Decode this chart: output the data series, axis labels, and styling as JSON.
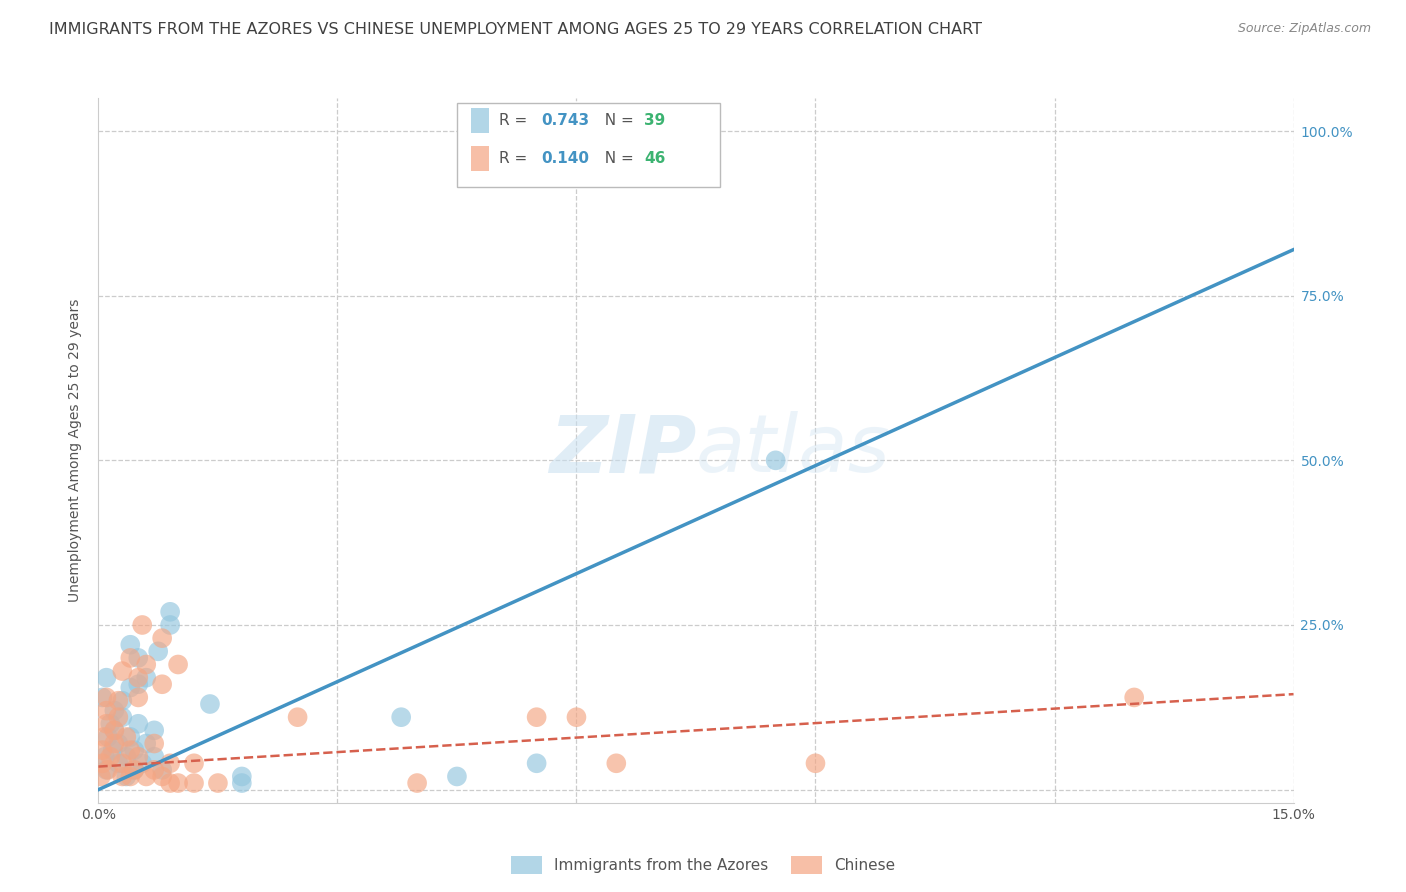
{
  "title": "IMMIGRANTS FROM THE AZORES VS CHINESE UNEMPLOYMENT AMONG AGES 25 TO 29 YEARS CORRELATION CHART",
  "source": "Source: ZipAtlas.com",
  "ylabel": "Unemployment Among Ages 25 to 29 years",
  "xlim": [
    0.0,
    0.15
  ],
  "ylim": [
    -0.02,
    1.05
  ],
  "xticks": [
    0.0,
    0.03,
    0.06,
    0.09,
    0.12,
    0.15
  ],
  "xticklabels": [
    "0.0%",
    "",
    "",
    "",
    "",
    "15.0%"
  ],
  "yticks": [
    0.0,
    0.25,
    0.5,
    0.75,
    1.0
  ],
  "right_yticklabels": [
    "",
    "25.0%",
    "50.0%",
    "75.0%",
    "100.0%"
  ],
  "watermark_zip": "ZIP",
  "watermark_atlas": "atlas",
  "legend_r1": "R = 0.743",
  "legend_n1": "N = 39",
  "legend_r2": "R = 0.140",
  "legend_n2": "N = 46",
  "azores_color": "#92c5de",
  "chinese_color": "#f4a582",
  "azores_line_color": "#4393c3",
  "chinese_line_color": "#d6604d",
  "azores_scatter": [
    [
      0.0005,
      0.14
    ],
    [
      0.001,
      0.17
    ],
    [
      0.0008,
      0.05
    ],
    [
      0.0012,
      0.08
    ],
    [
      0.0015,
      0.1
    ],
    [
      0.001,
      0.03
    ],
    [
      0.0018,
      0.06
    ],
    [
      0.002,
      0.09
    ],
    [
      0.002,
      0.12
    ],
    [
      0.0025,
      0.04
    ],
    [
      0.0025,
      0.07
    ],
    [
      0.003,
      0.11
    ],
    [
      0.003,
      0.135
    ],
    [
      0.0035,
      0.02
    ],
    [
      0.0035,
      0.05
    ],
    [
      0.004,
      0.08
    ],
    [
      0.004,
      0.155
    ],
    [
      0.004,
      0.22
    ],
    [
      0.0045,
      0.03
    ],
    [
      0.0045,
      0.06
    ],
    [
      0.005,
      0.1
    ],
    [
      0.005,
      0.16
    ],
    [
      0.005,
      0.2
    ],
    [
      0.0055,
      0.04
    ],
    [
      0.006,
      0.07
    ],
    [
      0.006,
      0.17
    ],
    [
      0.007,
      0.05
    ],
    [
      0.007,
      0.09
    ],
    [
      0.0075,
      0.21
    ],
    [
      0.008,
      0.03
    ],
    [
      0.009,
      0.25
    ],
    [
      0.009,
      0.27
    ],
    [
      0.014,
      0.13
    ],
    [
      0.018,
      0.02
    ],
    [
      0.018,
      0.01
    ],
    [
      0.038,
      0.11
    ],
    [
      0.045,
      0.02
    ],
    [
      0.055,
      0.04
    ],
    [
      0.085,
      0.5
    ]
  ],
  "chinese_scatter": [
    [
      0.0003,
      0.02
    ],
    [
      0.0005,
      0.04
    ],
    [
      0.0005,
      0.06
    ],
    [
      0.0007,
      0.08
    ],
    [
      0.001,
      0.1
    ],
    [
      0.001,
      0.12
    ],
    [
      0.001,
      0.14
    ],
    [
      0.0012,
      0.03
    ],
    [
      0.0015,
      0.05
    ],
    [
      0.002,
      0.07
    ],
    [
      0.002,
      0.09
    ],
    [
      0.0025,
      0.11
    ],
    [
      0.0025,
      0.135
    ],
    [
      0.003,
      0.02
    ],
    [
      0.003,
      0.04
    ],
    [
      0.003,
      0.18
    ],
    [
      0.0035,
      0.08
    ],
    [
      0.004,
      0.02
    ],
    [
      0.004,
      0.06
    ],
    [
      0.004,
      0.2
    ],
    [
      0.0045,
      0.03
    ],
    [
      0.005,
      0.05
    ],
    [
      0.005,
      0.14
    ],
    [
      0.005,
      0.17
    ],
    [
      0.0055,
      0.25
    ],
    [
      0.006,
      0.02
    ],
    [
      0.006,
      0.19
    ],
    [
      0.007,
      0.03
    ],
    [
      0.007,
      0.07
    ],
    [
      0.008,
      0.02
    ],
    [
      0.008,
      0.16
    ],
    [
      0.008,
      0.23
    ],
    [
      0.009,
      0.01
    ],
    [
      0.009,
      0.04
    ],
    [
      0.01,
      0.01
    ],
    [
      0.01,
      0.19
    ],
    [
      0.012,
      0.04
    ],
    [
      0.012,
      0.01
    ],
    [
      0.015,
      0.01
    ],
    [
      0.025,
      0.11
    ],
    [
      0.04,
      0.01
    ],
    [
      0.055,
      0.11
    ],
    [
      0.06,
      0.11
    ],
    [
      0.065,
      0.04
    ],
    [
      0.09,
      0.04
    ],
    [
      0.13,
      0.14
    ]
  ],
  "azores_line_x": [
    0.0,
    0.15
  ],
  "azores_line_y": [
    0.0,
    0.82
  ],
  "chinese_line_x": [
    0.0,
    0.15
  ],
  "chinese_line_y": [
    0.035,
    0.145
  ],
  "background_color": "#ffffff",
  "grid_color": "#cccccc",
  "title_color": "#404040",
  "source_color": "#888888",
  "label_color": "#555555",
  "tick_color": "#4393c3",
  "title_fontsize": 11.5,
  "axis_fontsize": 10,
  "tick_fontsize": 10
}
